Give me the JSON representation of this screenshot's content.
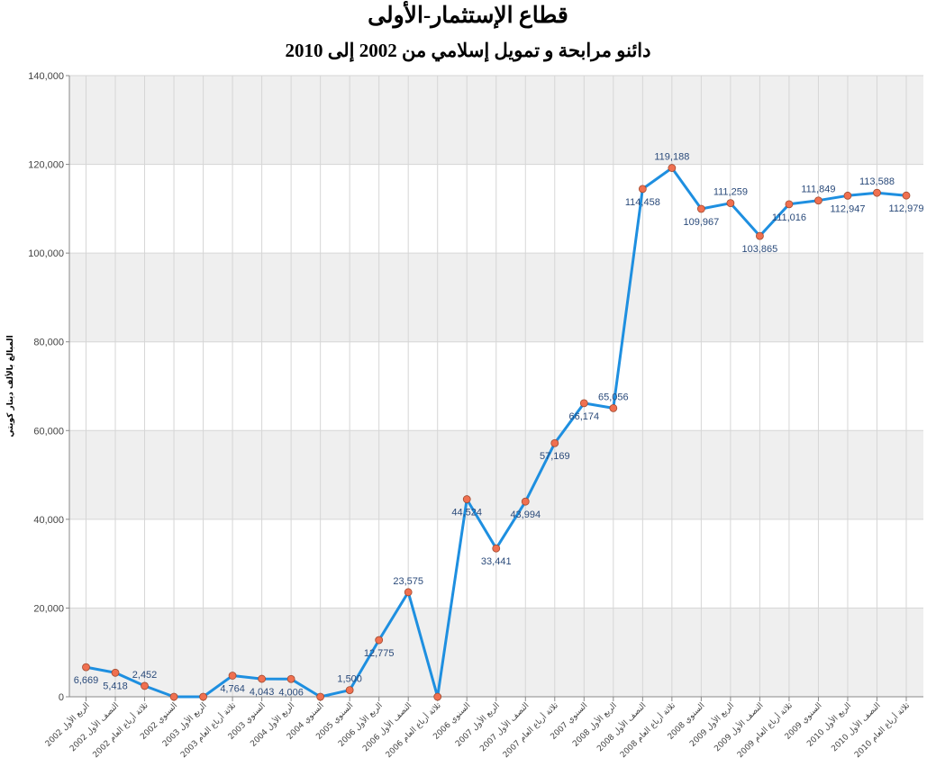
{
  "chart_data": {
    "type": "line",
    "title": "قطاع الإستثمار-الأولى",
    "subtitle": "دائنو مرابحة و تمويل إسلامي من 2002 إلى 2010",
    "ylabel": "المبالغ بالألف دينار كويتي",
    "xlabel": "",
    "ylim": [
      0,
      140000
    ],
    "yticks": [
      0,
      20000,
      40000,
      60000,
      80000,
      100000,
      120000,
      140000
    ],
    "ytick_labels": [
      "0",
      "20,000",
      "40,000",
      "60,000",
      "80,000",
      "100,000",
      "120,000",
      "140,000"
    ],
    "grid": true,
    "line_color": "#1e8fe0",
    "marker_color": "#f07050",
    "band_color": "#efefef",
    "categories": [
      "الربع الأول 2002",
      "النصف الأول 2002",
      "ثلاثة أرباع العام 2002",
      "السنوي 2002",
      "الربع الأول 2003",
      "ثلاثة أرباع العام 2003",
      "السنوي 2003",
      "الربع الأول 2004",
      "السنوي 2004",
      "السنوي 2005",
      "الربع الأول 2006",
      "النصف الأول 2006",
      "ثلاثة أرباع العام 2006",
      "السنوي 2006",
      "الربع الأول 2007",
      "النصف الأول 2007",
      "ثلاثة أرباع العام 2007",
      "السنوي 2007",
      "الربع الأول 2008",
      "النصف الأول 2008",
      "ثلاثة أرباع العام 2008",
      "السنوي 2008",
      "الربع الأول 2009",
      "النصف الأول 2009",
      "ثلاثة أرباع العام 2009",
      "السنوي 2009",
      "الربع الأول 2010",
      "النصف الأول 2010",
      "ثلاثة أرباع العام 2010"
    ],
    "values": [
      6669,
      5418,
      2452,
      0,
      0,
      4764,
      4043,
      4006,
      0,
      1500,
      12775,
      23575,
      0,
      44524,
      33441,
      43994,
      57169,
      66174,
      65056,
      114458,
      119188,
      109967,
      111259,
      103865,
      111016,
      111849,
      112947,
      113588,
      112979
    ],
    "data_labels": [
      "6,669",
      "5,418",
      "2,452",
      "",
      "",
      "4,764",
      "4,043",
      "4,006",
      "",
      "1,500",
      "12,775",
      "23,575",
      "",
      "44,524",
      "33,441",
      "43,994",
      "57,169",
      "66,174",
      "65,056",
      "114,458",
      "119,188",
      "109,967",
      "111,259",
      "103,865",
      "111,016",
      "111,849",
      "112,947",
      "113,588",
      "112,979"
    ],
    "label_pos": [
      "below",
      "below",
      "above",
      "",
      "",
      "below",
      "below",
      "below",
      "",
      "above",
      "below",
      "above",
      "",
      "below",
      "below",
      "below",
      "below",
      "below",
      "above",
      "below",
      "above",
      "below",
      "above",
      "below",
      "below",
      "above",
      "below",
      "above",
      "below"
    ]
  }
}
